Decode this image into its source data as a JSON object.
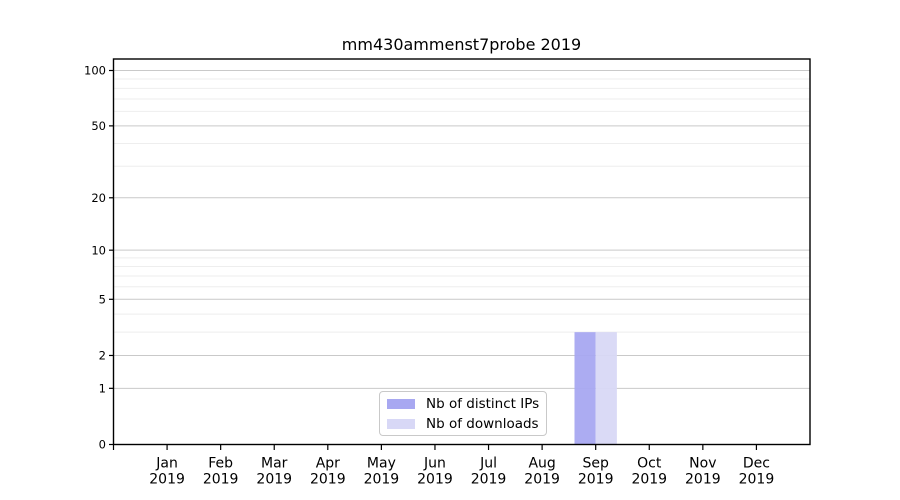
{
  "chart_data": {
    "type": "bar",
    "title": "mm430ammenst7probe 2019",
    "categories": [
      "Jan 2019",
      "Feb 2019",
      "Mar 2019",
      "Apr 2019",
      "May 2019",
      "Jun 2019",
      "Jul 2019",
      "Aug 2019",
      "Sep 2019",
      "Oct 2019",
      "Nov 2019",
      "Dec 2019"
    ],
    "series": [
      {
        "name": "Nb of distinct IPs",
        "color": "#a8a8f1",
        "values": [
          0,
          0,
          0,
          0,
          0,
          0,
          0,
          0,
          3,
          0,
          0,
          0
        ]
      },
      {
        "name": "Nb of downloads",
        "color": "#d8d8f6",
        "values": [
          0,
          0,
          0,
          0,
          0,
          0,
          0,
          0,
          3,
          0,
          0,
          0
        ]
      }
    ],
    "xlabel": "",
    "ylabel": "",
    "yscale": "log1p",
    "y_ticks": [
      0,
      1,
      2,
      5,
      10,
      20,
      50,
      100
    ],
    "y_tick_labels": [
      "0",
      "1",
      "2",
      "5",
      "10",
      "20",
      "50",
      "100"
    ],
    "y_minor_gridlines": [
      3,
      4,
      6,
      7,
      8,
      9,
      30,
      40,
      60,
      70,
      80,
      90
    ],
    "ylim": [
      0,
      116
    ],
    "grid": "horizontal",
    "legend_position": "inside-bottom-center"
  },
  "style": {
    "background": "#ffffff",
    "axis_color": "#000000",
    "text_color": "#000000",
    "grid_major_color": "#c9c9c9",
    "grid_minor_color": "#eeeeee",
    "legend_border_color": "#c9c9c9"
  }
}
